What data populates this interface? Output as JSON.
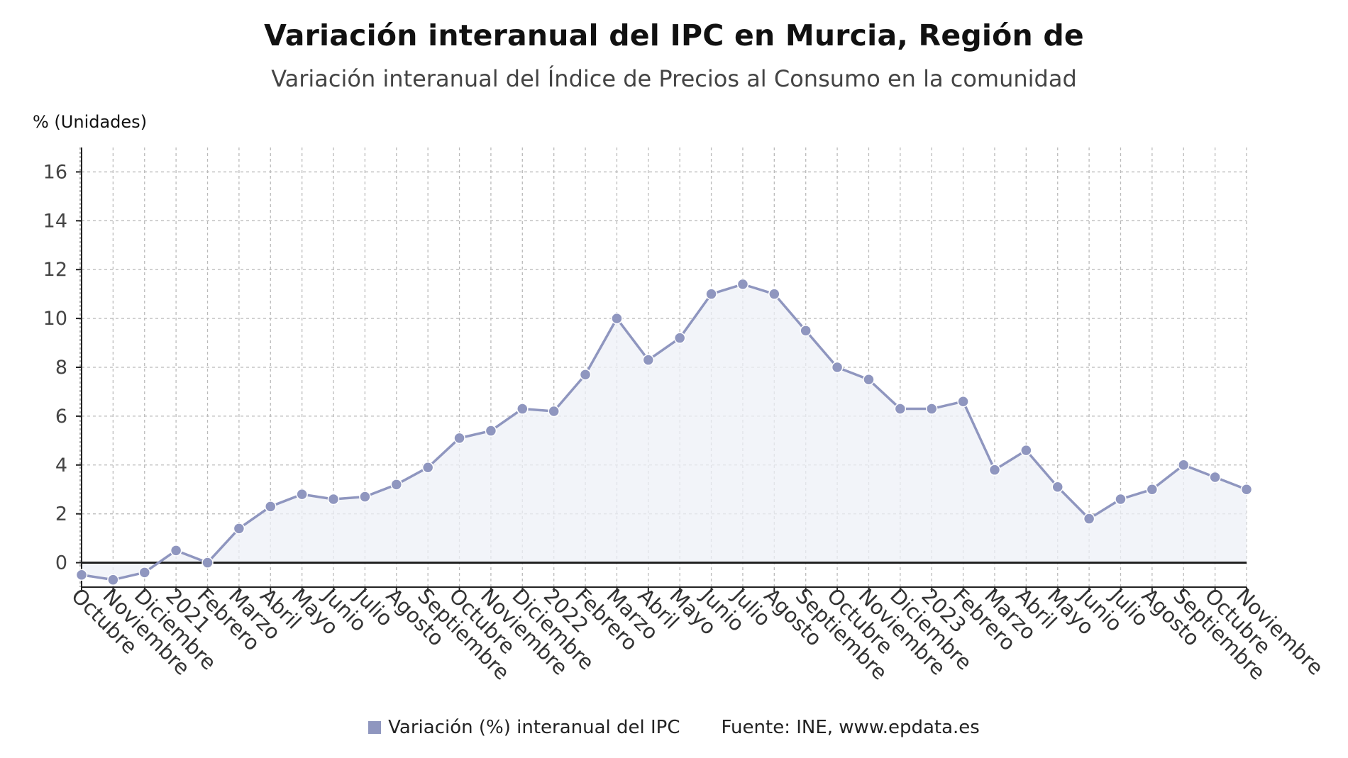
{
  "header": {
    "title": "Variación interanual del IPC en Murcia, Región de",
    "subtitle": "Variación interanual del Índice de Precios al Consumo en la comunidad"
  },
  "legend": {
    "series_label": "Variación (%) interanual del IPC",
    "source": "Fuente: INE, www.epdata.es"
  },
  "colors": {
    "series": "#8f96bf",
    "fill": "#eef0f7",
    "grid": "#bbbbbb",
    "baseline": "#222222"
  },
  "chart_data": {
    "type": "line",
    "title": "Variación interanual del IPC en Murcia, Región de",
    "subtitle": "Variación interanual del Índice de Precios al Consumo en la comunidad",
    "ylabel": "% (Unidades)",
    "xlabel": "",
    "ylim": [
      -1,
      17
    ],
    "yticks": [
      0,
      2,
      4,
      6,
      8,
      10,
      12,
      14,
      16
    ],
    "grid": true,
    "area_fill": true,
    "categories": [
      "Octubre",
      "Noviembre",
      "Diciembre",
      "2021",
      "Febrero",
      "Marzo",
      "Abril",
      "Mayo",
      "Junio",
      "Julio",
      "Agosto",
      "Septiembre",
      "Octubre",
      "Noviembre",
      "Diciembre",
      "2022",
      "Febrero",
      "Marzo",
      "Abril",
      "Mayo",
      "Junio",
      "Julio",
      "Agosto",
      "Septiembre",
      "Octubre",
      "Noviembre",
      "Diciembre",
      "2023",
      "Febrero",
      "Marzo",
      "Abril",
      "Mayo",
      "Junio",
      "Julio",
      "Agosto",
      "Septiembre",
      "Octubre",
      "Noviembre"
    ],
    "series": [
      {
        "name": "Variación (%) interanual del IPC",
        "values": [
          -0.5,
          -0.7,
          -0.4,
          0.5,
          0.0,
          1.4,
          2.3,
          2.8,
          2.6,
          2.7,
          3.2,
          3.9,
          5.1,
          5.4,
          6.3,
          6.2,
          7.7,
          10.0,
          8.3,
          9.2,
          11.0,
          11.4,
          11.0,
          9.5,
          8.0,
          7.5,
          6.3,
          6.3,
          6.6,
          3.8,
          4.6,
          3.1,
          1.8,
          2.6,
          3.0,
          4.0,
          3.5,
          3.0
        ]
      }
    ]
  }
}
